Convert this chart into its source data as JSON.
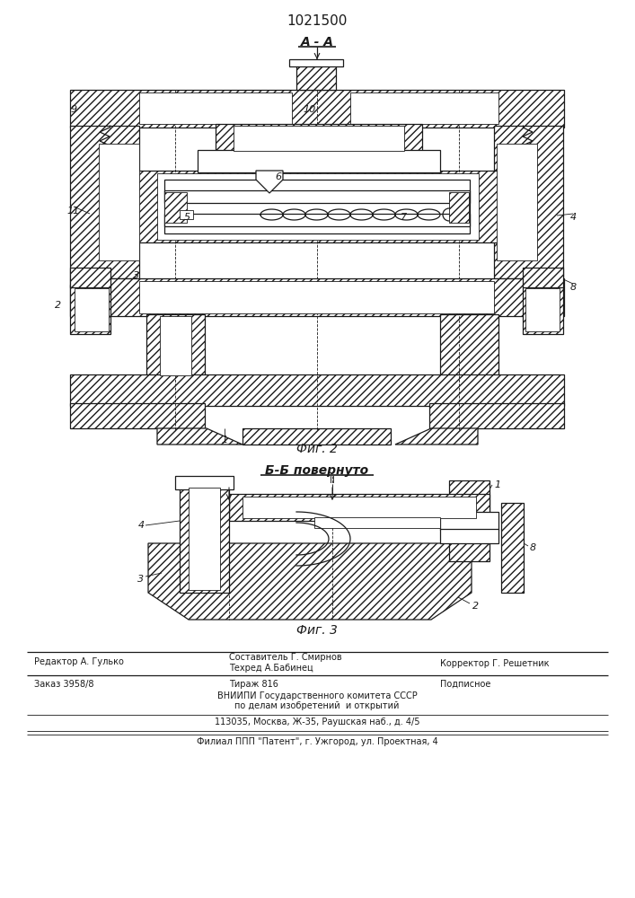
{
  "patent_number": "1021500",
  "bg_color": "#ffffff",
  "fig2_label": "Фиг. 2",
  "fig3_label": "Фиг. 3",
  "section_aa": "А - А",
  "section_bb": "Б-Б повернуто",
  "line_color": "#1a1a1a",
  "hatch_color": "#333333"
}
